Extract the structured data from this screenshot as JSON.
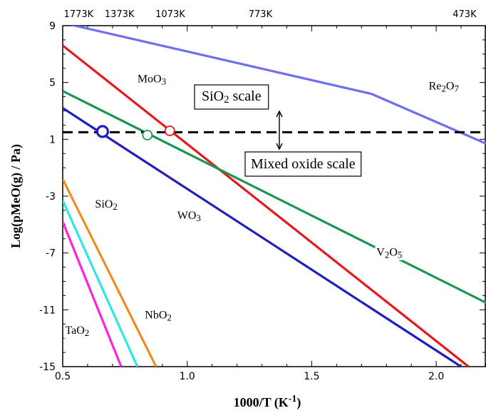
{
  "chart_data": {
    "type": "line",
    "xlabel": "1000/T (K-1)",
    "xlabel_parts": {
      "main": "1000/T (K",
      "sup": "-1",
      "end": ")"
    },
    "ylabel": "Log(pMeO(g) / Pa)",
    "xlim": [
      0.5,
      2.2
    ],
    "ylim": [
      -15,
      9
    ],
    "x_ticks": [
      {
        "v": 0.5,
        "label": "0.5"
      },
      {
        "v": 1.0,
        "label": "1.0"
      },
      {
        "v": 1.5,
        "label": "1.5"
      },
      {
        "v": 2.0,
        "label": "2.0"
      }
    ],
    "y_ticks": [
      {
        "v": 9,
        "label": "9"
      },
      {
        "v": 5,
        "label": "5"
      },
      {
        "v": 1,
        "label": "1"
      },
      {
        "v": -3,
        "label": "-3"
      },
      {
        "v": -7,
        "label": "-7"
      },
      {
        "v": -11,
        "label": "-11"
      },
      {
        "v": -15,
        "label": "-15"
      }
    ],
    "top_axis": [
      {
        "x": 0.564,
        "label": "1773K"
      },
      {
        "x": 0.728,
        "label": "1373K"
      },
      {
        "x": 0.932,
        "label": "1073K"
      },
      {
        "x": 1.294,
        "label": "773K"
      },
      {
        "x": 2.114,
        "label": "473K"
      }
    ],
    "series": [
      {
        "name": "Re2O7",
        "color": "#6f6fee",
        "points": [
          [
            0.5,
            9.2
          ],
          [
            1.74,
            4.2
          ],
          [
            2.2,
            0.7
          ]
        ],
        "label": {
          "base": "Re",
          "sub1": "2",
          "mid": "O",
          "sub2": "7",
          "at": [
            1.97,
            4.5
          ]
        }
      },
      {
        "name": "MoO3",
        "color": "#e41a1c",
        "points": [
          [
            0.5,
            7.6
          ],
          [
            2.13,
            -15
          ]
        ],
        "label": {
          "base": "MoO",
          "sub1": "3",
          "mid": "",
          "sub2": "",
          "at": [
            0.8,
            5.0
          ]
        }
      },
      {
        "name": "V2O5",
        "color": "#1a9850",
        "points": [
          [
            0.5,
            4.4
          ],
          [
            2.2,
            -10.5
          ]
        ],
        "label": {
          "base": "V",
          "sub1": "2",
          "mid": "O",
          "sub2": "5",
          "at": [
            1.76,
            -7.2
          ]
        }
      },
      {
        "name": "WO3",
        "color": "#1f1fbf",
        "points": [
          [
            0.5,
            3.2
          ],
          [
            2.1,
            -15
          ]
        ],
        "label": {
          "base": "WO",
          "sub1": "3",
          "mid": "",
          "sub2": "",
          "at": [
            0.96,
            -4.6
          ]
        }
      },
      {
        "name": "SiO2",
        "color": "#f28c1e",
        "points": [
          [
            0.5,
            -1.8
          ],
          [
            0.875,
            -15
          ]
        ],
        "label": {
          "base": "SiO",
          "sub1": "2",
          "mid": "",
          "sub2": "",
          "at": [
            0.63,
            -3.8
          ]
        }
      },
      {
        "name": "NbO2",
        "color": "#2ee6e6",
        "points": [
          [
            0.5,
            -3.3
          ],
          [
            0.8,
            -15
          ]
        ],
        "label": {
          "base": "NbO",
          "sub1": "2",
          "mid": "",
          "sub2": "",
          "at": [
            0.83,
            -11.6
          ]
        }
      },
      {
        "name": "TaO2",
        "color": "#ff22dd",
        "points": [
          [
            0.5,
            -4.8
          ],
          [
            0.735,
            -15
          ]
        ],
        "label": {
          "base": "TaO",
          "sub1": "2",
          "mid": "",
          "sub2": "",
          "at": [
            0.51,
            -12.7
          ]
        }
      }
    ],
    "reference_line": {
      "y": 1.5,
      "style": "dashed",
      "color": "#000000"
    },
    "markers": [
      {
        "x": 0.66,
        "y": 1.55,
        "stroke": "#1f1fbf",
        "size": "large"
      },
      {
        "x": 0.84,
        "y": 1.3,
        "stroke": "#1a9850",
        "size": "small"
      },
      {
        "x": 0.93,
        "y": 1.6,
        "stroke": "#e41a1c",
        "size": "small"
      }
    ],
    "annotations": {
      "upper_box": {
        "base": "SiO",
        "sub": "2",
        "end": " scale"
      },
      "lower_box": {
        "text": "Mixed oxide scale"
      }
    }
  }
}
